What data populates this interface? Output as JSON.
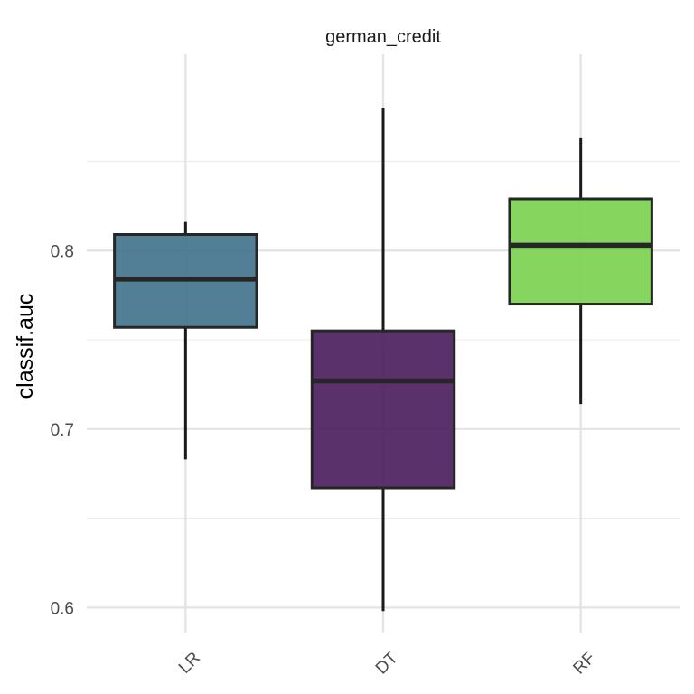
{
  "chart_data": {
    "type": "boxplot",
    "facet_title": "german_credit",
    "ylabel": "classif.auc",
    "xlabel": "",
    "ylim": [
      0.586,
      0.91
    ],
    "y_ticks": [
      0.6,
      0.7,
      0.8
    ],
    "y_tick_labels": [
      "0.6",
      "0.7",
      "0.8"
    ],
    "grid": true,
    "categories": [
      "LR",
      "DT",
      "RF"
    ],
    "boxes": [
      {
        "label": "LR",
        "color": "#3f7189",
        "whisker_low": 0.683,
        "q1": 0.757,
        "median": 0.784,
        "q3": 0.809,
        "whisker_high": 0.816
      },
      {
        "label": "DT",
        "color": "#481b5b",
        "whisker_low": 0.598,
        "q1": 0.667,
        "median": 0.727,
        "q3": 0.755,
        "whisker_high": 0.88
      },
      {
        "label": "RF",
        "color": "#78d04e",
        "whisker_low": 0.714,
        "q1": 0.77,
        "median": 0.803,
        "q3": 0.829,
        "whisker_high": 0.863
      }
    ]
  }
}
